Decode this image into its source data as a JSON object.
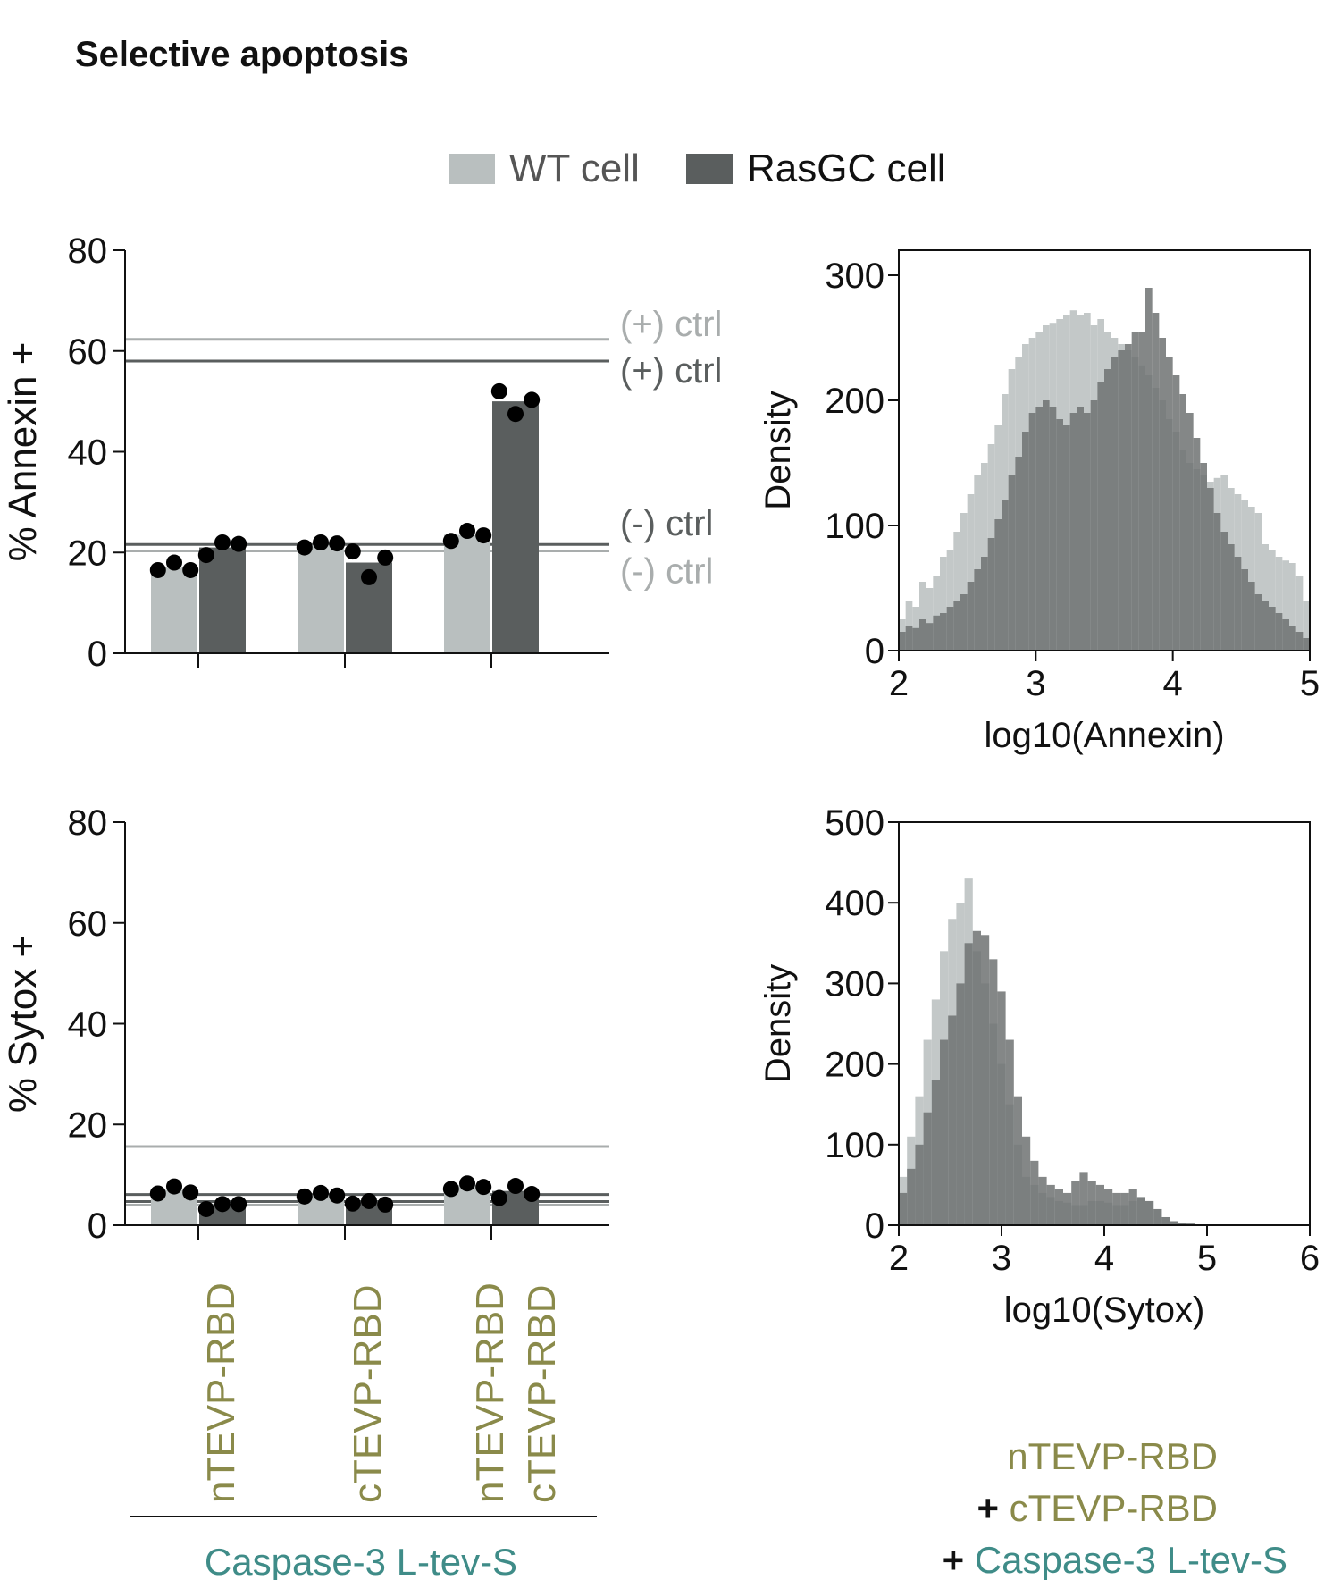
{
  "figure": {
    "title": "Selective apoptosis",
    "legend": [
      {
        "label": "WT cell",
        "color": "#b9bfbf"
      },
      {
        "label": "RasGC cell",
        "color": "#5a5e5e"
      }
    ],
    "construct_labels": [
      [
        "nTEVP-RBD"
      ],
      [
        "cTEVP-RBD"
      ],
      [
        "nTEVP-RBD",
        "cTEVP-RBD"
      ]
    ],
    "group_label": "Caspase-3 L-tev-S",
    "histogram_caption": {
      "line1": "nTEVP-RBD",
      "line2_prefix": "+ ",
      "line2": "cTEVP-RBD",
      "line3_prefix": "+ ",
      "line3": "Caspase-3 L-tev-S"
    },
    "colors": {
      "wt": "#b9bfbf",
      "rasgc": "#5a5e5e",
      "wt_hist": "#c3c8c8",
      "rasgc_hist": "#6e7272",
      "wt_line": "#a9adad",
      "rasgc_line": "#5a5e5e",
      "olive": "#8a8a4a",
      "teal": "#3f8c88",
      "dot": "#000000"
    }
  },
  "chart_data": [
    {
      "type": "bar",
      "ylabel": "% Annexin +",
      "ylim": [
        0,
        80
      ],
      "yticks": [
        0,
        20,
        40,
        60,
        80
      ],
      "categories": [
        "nTEVP-RBD",
        "cTEVP-RBD",
        "nTEVP-RBD + cTEVP-RBD"
      ],
      "series": [
        {
          "name": "WT cell",
          "values": [
            17,
            21.5,
            23.5
          ],
          "points": [
            [
              16.5,
              18,
              16.5
            ],
            [
              21,
              22,
              21.8
            ],
            [
              22.3,
              24.3,
              23.4
            ]
          ]
        },
        {
          "name": "RasGC cell",
          "values": [
            21,
            18,
            50
          ],
          "points": [
            [
              19.5,
              22,
              21.7
            ],
            [
              20.2,
              15.1,
              19
            ]
          ],
          "points_group3": [
            52,
            47.5,
            50.3
          ]
        }
      ],
      "reference_lines": [
        {
          "label": "(+) ctrl",
          "series": "WT cell",
          "value": 62.3
        },
        {
          "label": "(+) ctrl",
          "series": "RasGC cell",
          "value": 58
        },
        {
          "label": "(-) ctrl",
          "series": "RasGC cell",
          "value": 21.6
        },
        {
          "label": "(-) ctrl",
          "series": "WT cell",
          "value": 20.3
        }
      ]
    },
    {
      "type": "area",
      "xlabel": "log10(Annexin)",
      "ylabel": "Density",
      "xlim": [
        2,
        5
      ],
      "ylim": [
        0,
        320
      ],
      "xticks": [
        2,
        3,
        4,
        5
      ],
      "yticks": [
        0,
        100,
        200,
        300
      ],
      "bin_start": 2,
      "bin_width": 0.05,
      "series": [
        {
          "name": "WT cell",
          "values": [
            25,
            40,
            35,
            55,
            50,
            60,
            75,
            80,
            95,
            110,
            125,
            140,
            150,
            165,
            180,
            205,
            225,
            235,
            245,
            250,
            255,
            260,
            262,
            265,
            268,
            272,
            268,
            270,
            260,
            265,
            255,
            250,
            245,
            240,
            235,
            228,
            220,
            210,
            200,
            185,
            175,
            160,
            150,
            145,
            140,
            135,
            138,
            140,
            130,
            125,
            120,
            115,
            110,
            85,
            80,
            75,
            72,
            70,
            60,
            40,
            30
          ]
        },
        {
          "name": "RasGC cell",
          "values": [
            15,
            20,
            18,
            25,
            22,
            28,
            30,
            35,
            40,
            45,
            55,
            65,
            75,
            90,
            105,
            120,
            140,
            155,
            175,
            190,
            195,
            200,
            195,
            185,
            180,
            190,
            195,
            190,
            200,
            215,
            225,
            235,
            240,
            245,
            255,
            255,
            290,
            270,
            250,
            235,
            220,
            205,
            190,
            170,
            150,
            130,
            110,
            95,
            85,
            75,
            65,
            55,
            45,
            40,
            35,
            30,
            25,
            20,
            15,
            10,
            0
          ]
        }
      ]
    },
    {
      "type": "bar",
      "ylabel": "% Sytox +",
      "ylim": [
        0,
        80
      ],
      "yticks": [
        0,
        20,
        40,
        60,
        80
      ],
      "categories": [
        "nTEVP-RBD",
        "cTEVP-RBD",
        "nTEVP-RBD + cTEVP-RBD"
      ],
      "series": [
        {
          "name": "WT cell",
          "values": [
            7,
            6,
            8
          ],
          "points": [
            [
              6.3,
              7.7,
              6.5
            ],
            [
              5.7,
              6.4,
              5.9
            ],
            [
              7.2,
              8.3,
              7.6
            ]
          ]
        },
        {
          "name": "RasGC cell",
          "values": [
            4,
            4.5,
            6.8
          ],
          "points": [
            [
              3.2,
              4.2,
              4.2
            ],
            [
              4.3,
              4.8,
              4.1
            ],
            [
              5.4,
              7.8,
              6.2
            ]
          ]
        }
      ],
      "reference_lines": [
        {
          "series": "WT cell",
          "value": 15.6
        },
        {
          "series": "RasGC cell",
          "value": 6.1
        },
        {
          "series": "RasGC cell",
          "value": 4.7
        },
        {
          "series": "WT cell",
          "value": 4.0
        }
      ]
    },
    {
      "type": "area",
      "xlabel": "log10(Sytox)",
      "ylabel": "Density",
      "xlim": [
        2,
        6
      ],
      "ylim": [
        0,
        500
      ],
      "xticks": [
        2,
        3,
        4,
        5,
        6
      ],
      "yticks": [
        0,
        100,
        200,
        300,
        400,
        500
      ],
      "bin_start": 2,
      "bin_width": 0.08,
      "series": [
        {
          "name": "WT cell",
          "values": [
            60,
            110,
            160,
            230,
            280,
            340,
            380,
            400,
            430,
            340,
            300,
            250,
            200,
            150,
            100,
            60,
            50,
            40,
            35,
            30,
            28,
            25,
            25,
            30,
            30,
            28,
            25,
            25,
            30,
            35,
            30,
            20,
            10,
            5,
            3,
            2,
            1,
            0,
            0,
            0
          ]
        },
        {
          "name": "RasGC cell",
          "values": [
            40,
            70,
            100,
            140,
            180,
            230,
            260,
            300,
            350,
            365,
            360,
            330,
            290,
            230,
            160,
            110,
            80,
            60,
            50,
            45,
            40,
            55,
            65,
            55,
            50,
            45,
            40,
            40,
            45,
            35,
            30,
            20,
            10,
            5,
            3,
            2,
            1,
            0,
            0,
            0
          ]
        }
      ]
    }
  ]
}
